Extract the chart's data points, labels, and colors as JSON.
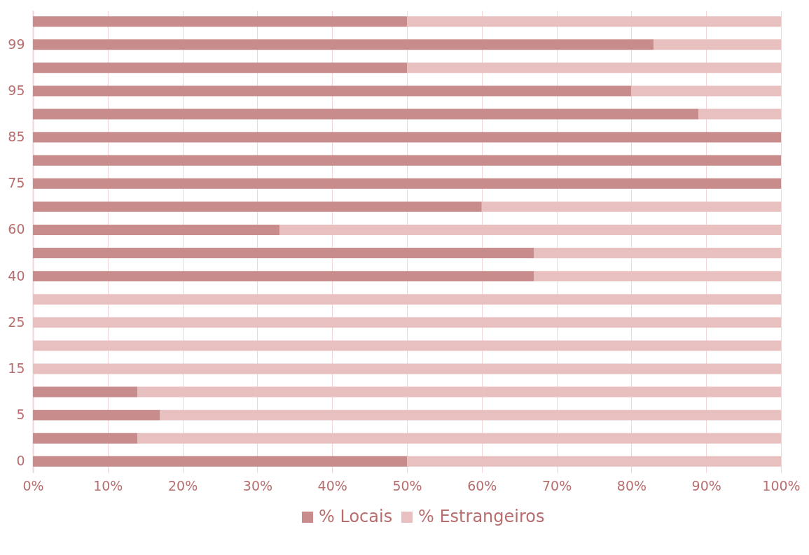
{
  "chart_data": {
    "type": "bar",
    "orientation": "horizontal",
    "stacked": true,
    "categories": [
      null,
      "99",
      null,
      "95",
      null,
      "85",
      null,
      "75",
      null,
      "60",
      null,
      "40",
      null,
      "25",
      null,
      "15",
      null,
      "5",
      null,
      "0"
    ],
    "series": [
      {
        "name": "% Locais",
        "color": "#c98c8c",
        "values": [
          50,
          83,
          50,
          80,
          89,
          100,
          100,
          100,
          60,
          33,
          67,
          67,
          0,
          0,
          0,
          0,
          14,
          17,
          14,
          50
        ]
      },
      {
        "name": "% Estrangeiros",
        "color": "#e8c0c0",
        "values": [
          50,
          17,
          50,
          20,
          11,
          0,
          0,
          0,
          40,
          67,
          33,
          33,
          100,
          100,
          100,
          100,
          86,
          83,
          86,
          50
        ]
      }
    ],
    "xlim": [
      0,
      100
    ],
    "xticks": [
      {
        "value": 0,
        "label": "0%"
      },
      {
        "value": 10,
        "label": "10%"
      },
      {
        "value": 20,
        "label": "20%"
      },
      {
        "value": 30,
        "label": "30%"
      },
      {
        "value": 40,
        "label": "40%"
      },
      {
        "value": 50,
        "label": "50%"
      },
      {
        "value": 60,
        "label": "60%"
      },
      {
        "value": 70,
        "label": "70%"
      },
      {
        "value": 80,
        "label": "80%"
      },
      {
        "value": 90,
        "label": "90%"
      },
      {
        "value": 100,
        "label": "100%"
      }
    ],
    "grid": "x",
    "legend": "bottom"
  }
}
